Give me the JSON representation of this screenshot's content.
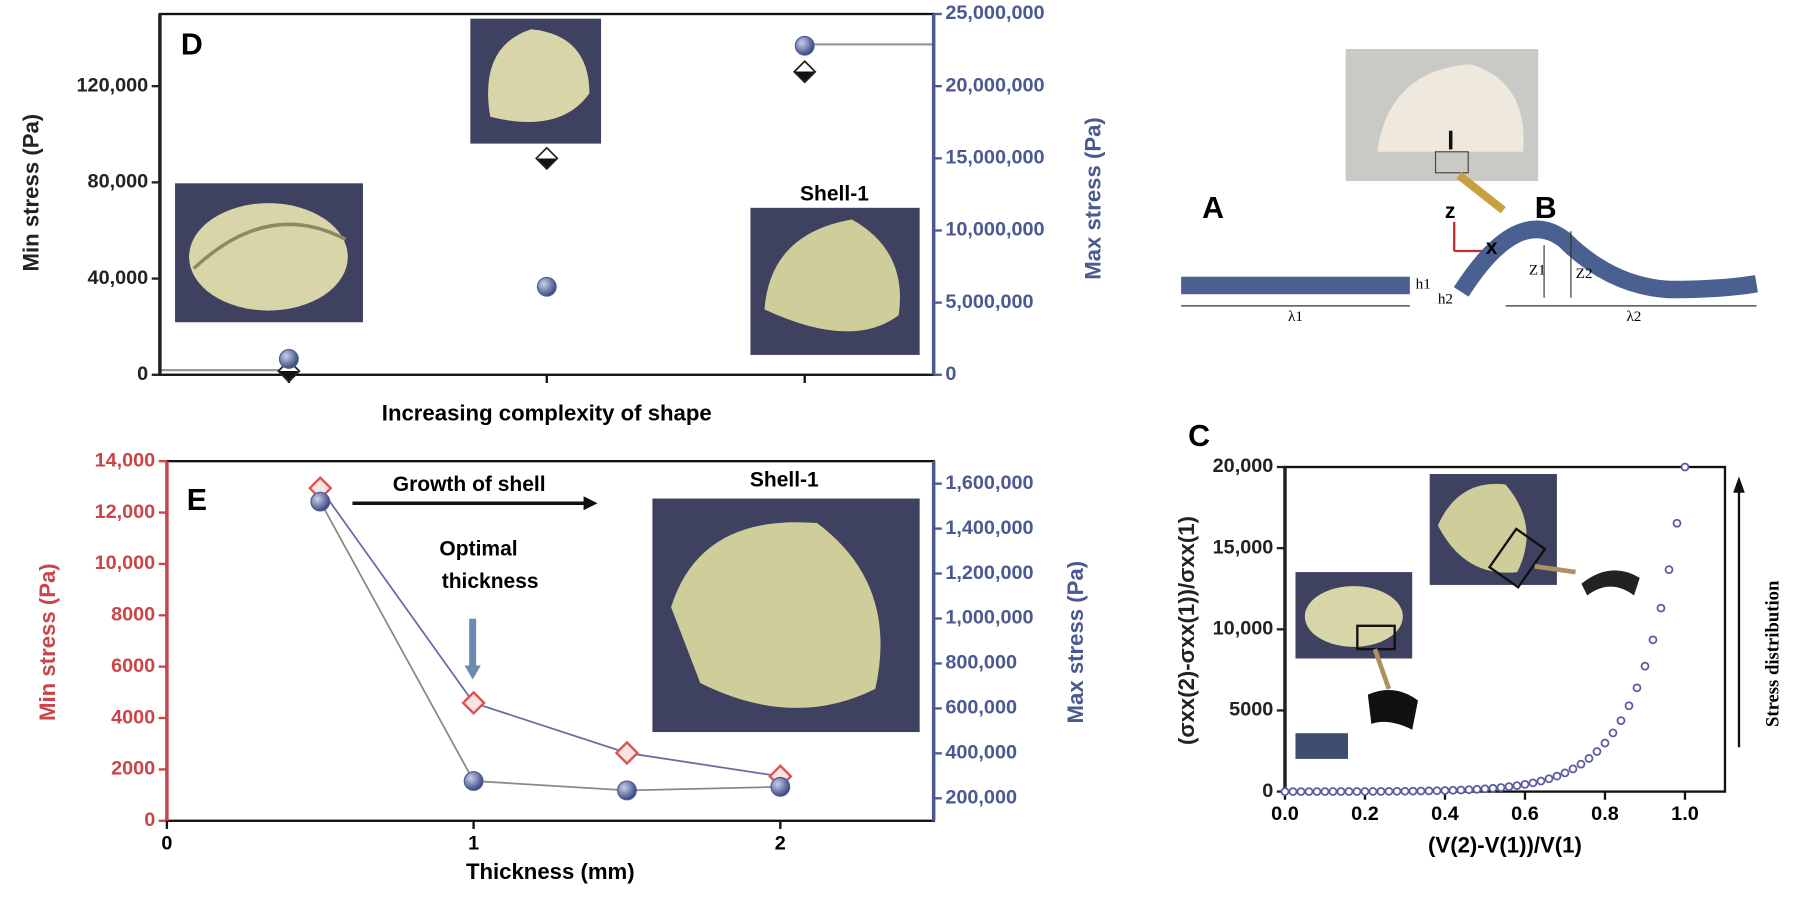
{
  "chart_data": [
    {
      "type": "scatter",
      "panel": "D",
      "x_label": "Increasing complexity of shape",
      "y_label": "Min stress (Pa)",
      "y2_label": "Max stress (Pa)",
      "annotations": [
        "Shell-1"
      ],
      "categories": [
        null,
        null,
        null
      ],
      "ylim": [
        0,
        150000
      ],
      "yticks": [
        0,
        {
          "value": 40000,
          "label": "40,000"
        },
        {
          "value": 80000,
          "label": "80,000"
        },
        {
          "value": 120000,
          "label": "120,000"
        }
      ],
      "y2lim": [
        0,
        25000000
      ],
      "y2ticks": [
        0,
        {
          "value": 5000000,
          "label": "5,000,000"
        },
        {
          "value": 10000000,
          "label": "10,000,000"
        },
        {
          "value": 15000000,
          "label": "15,000,000"
        },
        {
          "value": 20000000,
          "label": "20,000,000"
        },
        {
          "value": 25000000,
          "label": "25,000,000"
        }
      ],
      "y_color": "#222222",
      "y2_color": "#4a5a90",
      "series": [
        {
          "color": "#222222",
          "marker": "diamond",
          "values": [
            1500,
            90000,
            126000
          ]
        },
        {
          "color": "#4a5a90",
          "marker": "circle",
          "axis": "y2",
          "values": [
            1100000,
            6100000,
            22800000
          ]
        }
      ]
    },
    {
      "type": "line",
      "panel": "E",
      "x_label": "Thickness (mm)",
      "y_label": "Min stress (Pa)",
      "y2_label": "Max stress (Pa)",
      "annotations": [
        "Growth of shell",
        "Optimal",
        "thickness",
        "Shell-1"
      ],
      "x": [
        0.5,
        1,
        1.5,
        2
      ],
      "xlim": [
        0,
        2.5
      ],
      "xticks": [
        0,
        1,
        2
      ],
      "ylim": [
        0,
        14000
      ],
      "yticks": [
        0,
        2000,
        4000,
        6000,
        8000,
        {
          "value": 10000,
          "label": "10,000"
        },
        {
          "value": 12000,
          "label": "12,000"
        },
        {
          "value": 14000,
          "label": "14,000"
        }
      ],
      "y2lim": [
        100000,
        1700000
      ],
      "y2ticks": [
        {
          "value": 200000,
          "label": "200,000"
        },
        {
          "value": 400000,
          "label": "400,000"
        },
        {
          "value": 600000,
          "label": "600,000"
        },
        {
          "value": 800000,
          "label": "800,000"
        },
        {
          "value": 1000000,
          "label": "1,000,000"
        },
        {
          "value": 1200000,
          "label": "1,200,000"
        },
        {
          "value": 1400000,
          "label": "1,400,000"
        },
        {
          "value": 1600000,
          "label": "1,600,000"
        }
      ],
      "y_color": "#c8464a",
      "y2_color": "#4a5a90",
      "series": [
        {
          "color": "#d9534f",
          "line_color": "#6a6aa8",
          "marker": "diamond-open",
          "values": [
            12950,
            4590,
            2640,
            1730
          ]
        },
        {
          "color": "#4a5a90",
          "line_color": "#888888",
          "marker": "circle",
          "axis": "y2",
          "values": [
            1520000,
            277000,
            235000,
            251000
          ]
        }
      ]
    },
    {
      "type": "scatter",
      "panel": "C",
      "x_label": "(V(2)-V(1))/V(1)",
      "y_label": "(σxx(2)-σxx(1))/σxx(1)",
      "annotations": [
        "Stress distribution"
      ],
      "xlim": [
        0,
        1.1
      ],
      "xticks": [
        {
          "value": 0,
          "label": "0.0"
        },
        {
          "value": 0.2,
          "label": "0.2"
        },
        {
          "value": 0.4,
          "label": "0.4"
        },
        {
          "value": 0.6,
          "label": "0.6"
        },
        {
          "value": 0.8,
          "label": "0.8"
        },
        {
          "value": 1,
          "label": "1.0"
        }
      ],
      "ylim": [
        0,
        20000
      ],
      "yticks": [
        0,
        5000,
        {
          "value": 10000,
          "label": "10,000"
        },
        {
          "value": 15000,
          "label": "15,000"
        },
        {
          "value": 20000,
          "label": "20,000"
        }
      ],
      "y_color": "#222222",
      "x": [
        0,
        0.02,
        0.04,
        0.06,
        0.08,
        0.1,
        0.12,
        0.14,
        0.16,
        0.18,
        0.2,
        0.22,
        0.24,
        0.26,
        0.28,
        0.3,
        0.32,
        0.34,
        0.36,
        0.38,
        0.4,
        0.42,
        0.44,
        0.46,
        0.48,
        0.5,
        0.52,
        0.54,
        0.56,
        0.58,
        0.6,
        0.62,
        0.64,
        0.66,
        0.68,
        0.7,
        0.72,
        0.74,
        0.76,
        0.78,
        0.8,
        0.82,
        0.84,
        0.86,
        0.88,
        0.9,
        0.92,
        0.94,
        0.96,
        0.98,
        1
      ],
      "series": [
        {
          "color": "#5a5aa0",
          "marker": "open-circle",
          "values": [
            0,
            0,
            1,
            1,
            2,
            2,
            3,
            4,
            5,
            7,
            9,
            11,
            13,
            16,
            20,
            24,
            30,
            36,
            44,
            54,
            65,
            79,
            96,
            117,
            142,
            172,
            208,
            252,
            304,
            369,
            446,
            540,
            653,
            790,
            955,
            1155,
            1398,
            1690,
            2045,
            2472,
            2990,
            3615,
            4373,
            5288,
            6394,
            7732,
            9352,
            11308,
            13675,
            16536,
            20000
          ]
        }
      ]
    }
  ],
  "diagram": {
    "labels": [
      "A",
      "B",
      "z",
      "x",
      "λ1",
      "λ2",
      "h1",
      "h2",
      "Z1",
      "Z2"
    ]
  }
}
